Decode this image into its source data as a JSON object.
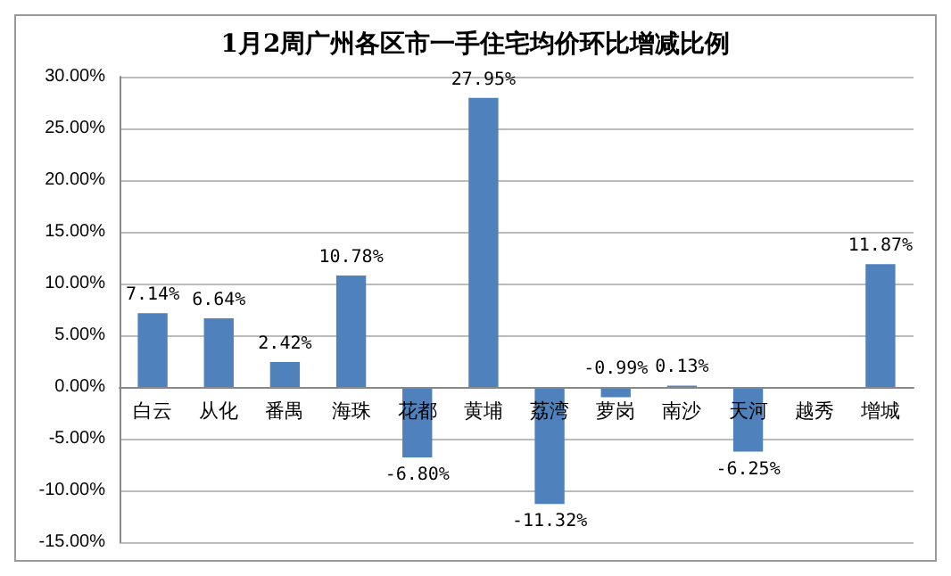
{
  "chart_data": {
    "type": "bar",
    "title": "1月2周广州各区市一手住宅均价环比增减比例",
    "categories": [
      "白云",
      "从化",
      "番禺",
      "海珠",
      "花都",
      "黄埔",
      "荔湾",
      "萝岗",
      "南沙",
      "天河",
      "越秀",
      "增城"
    ],
    "values": [
      7.14,
      6.64,
      2.42,
      10.78,
      -6.8,
      27.95,
      -11.32,
      -0.99,
      0.13,
      -6.25,
      null,
      11.87
    ],
    "value_labels": [
      "7.14%",
      "6.64%",
      "2.42%",
      "10.78%",
      "-6.80%",
      "27.95%",
      "-11.32%",
      "-0.99%",
      "0.13%",
      "-6.25%",
      null,
      "11.87%"
    ],
    "color": "#4f81bd",
    "ylim": [
      -15,
      30
    ],
    "yticks": [
      {
        "value": -15,
        "label": "-15.00%"
      },
      {
        "value": -10,
        "label": "-10.00%"
      },
      {
        "value": -5,
        "label": "-5.00%"
      },
      {
        "value": 0,
        "label": "0.00%"
      },
      {
        "value": 5,
        "label": "5.00%"
      },
      {
        "value": 10,
        "label": "10.00%"
      },
      {
        "value": 15,
        "label": "15.00%"
      },
      {
        "value": 20,
        "label": "20.00%"
      },
      {
        "value": 25,
        "label": "25.00%"
      },
      {
        "value": 30,
        "label": "30.00%"
      }
    ],
    "grid": "y"
  }
}
